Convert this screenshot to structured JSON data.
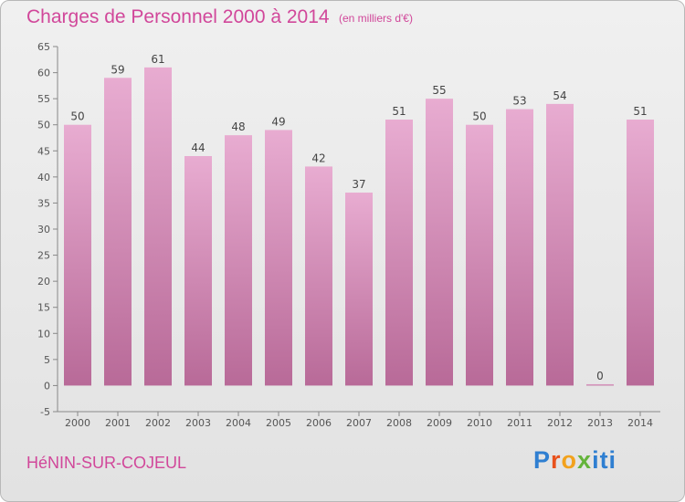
{
  "header": {
    "title": "Charges de Personnel 2000 à 2014",
    "subtitle": "(en milliers d'€)"
  },
  "footer": {
    "commune": "HéNIN-SUR-COJEUL",
    "brand": [
      "P",
      "r",
      "o",
      "x",
      "iti"
    ]
  },
  "colors": {
    "bar_top": "#e8acd1",
    "bar_bottom": "#b86a98",
    "title": "#d1479a"
  },
  "chart_data": {
    "type": "bar",
    "title": "Charges de Personnel 2000 à 2014",
    "subtitle": "(en milliers d'€)",
    "categories": [
      "2000",
      "2001",
      "2002",
      "2003",
      "2004",
      "2005",
      "2006",
      "2007",
      "2008",
      "2009",
      "2010",
      "2011",
      "2012",
      "2013",
      "2014"
    ],
    "values": [
      50,
      59,
      61,
      44,
      48,
      49,
      42,
      37,
      51,
      55,
      50,
      53,
      54,
      0,
      51
    ],
    "ylim": [
      -5,
      65
    ],
    "yticks": [
      -5,
      0,
      5,
      10,
      15,
      20,
      25,
      30,
      35,
      40,
      45,
      50,
      55,
      60,
      65
    ],
    "grid": false,
    "data_labels": true
  }
}
